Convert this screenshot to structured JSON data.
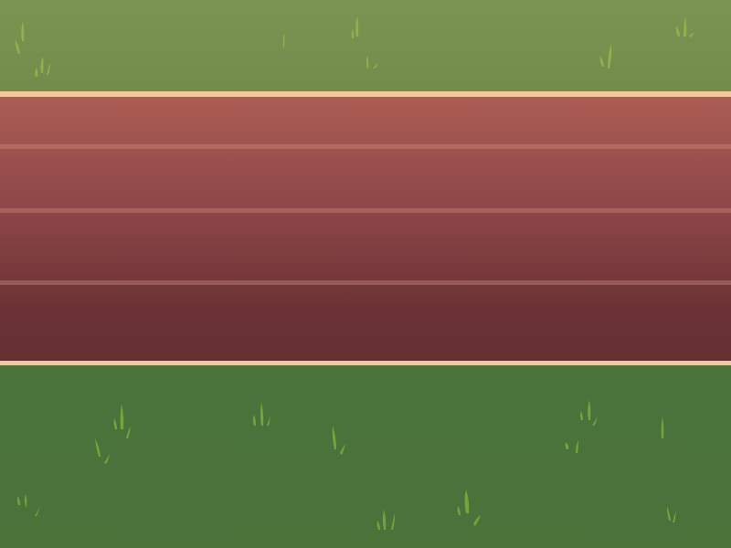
{
  "scene": {
    "type": "running-track",
    "lane_count": 4,
    "colors": {
      "grass_top": "#7a9451",
      "grass_bottom": "#4a7239",
      "track_top": "#ad5e54",
      "track_bottom": "#662f31",
      "track_edge": "#f1c99a",
      "lane_line": "#c98078",
      "grass_tuft_top": "#9cbf4f",
      "grass_tuft_bottom": "#7fae3c"
    }
  }
}
